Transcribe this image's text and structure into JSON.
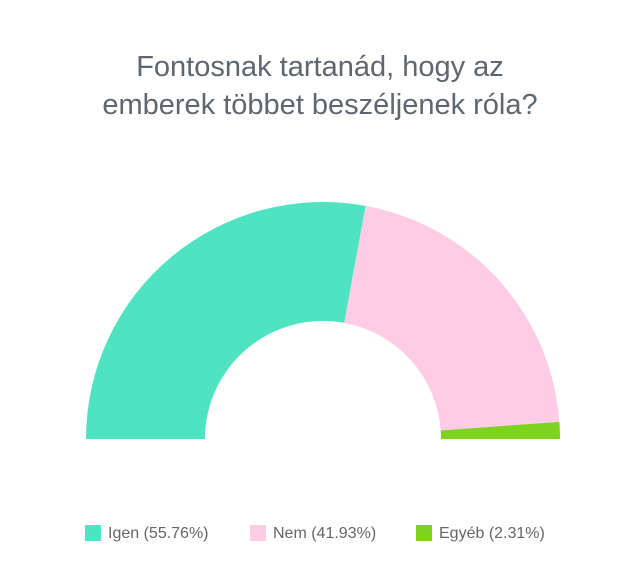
{
  "chart_data": {
    "type": "pie",
    "half": true,
    "title": "Fontosnak tartanád, hogy az emberek többet beszéljenek róla?",
    "categories": [
      "Igen (55.76%)",
      "Nem (41.93%)",
      "Egyéb (2.31%)"
    ],
    "values": [
      55.76,
      41.93,
      2.31
    ],
    "colors": [
      "#50e3c2",
      "#ffcce6",
      "#7ed321"
    ]
  }
}
